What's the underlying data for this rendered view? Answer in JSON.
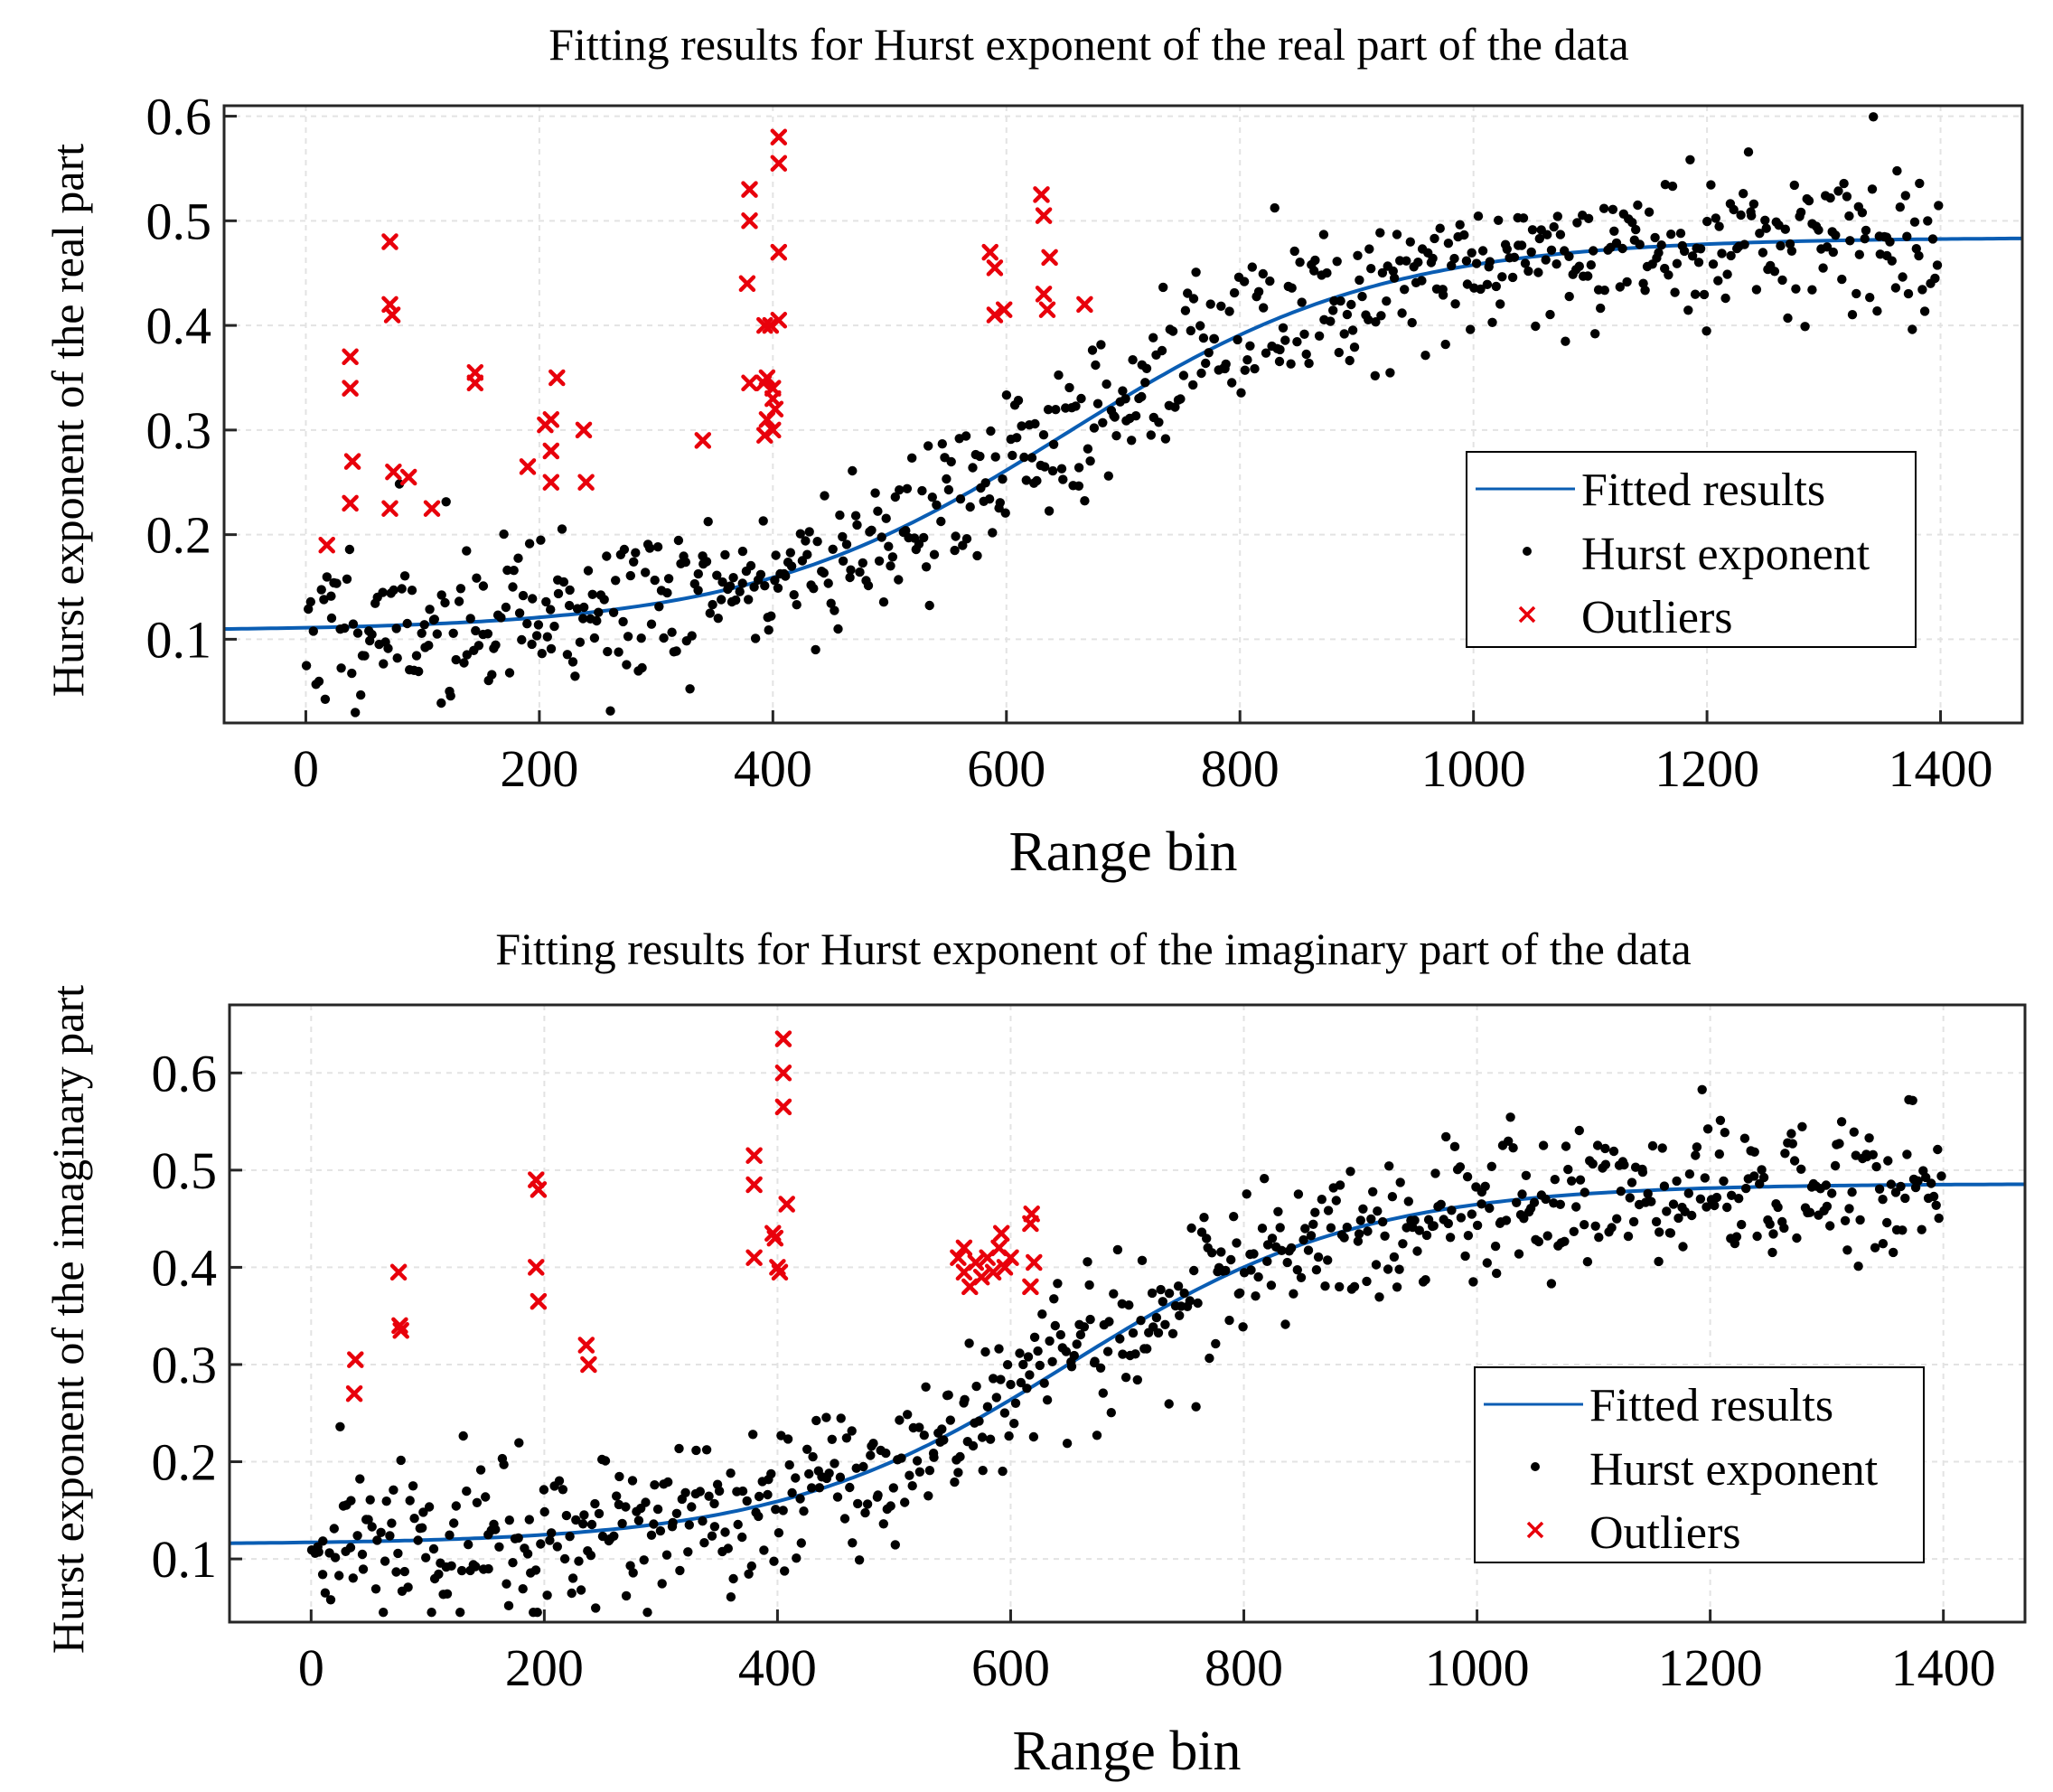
{
  "colors": {
    "fit": "#0a5db3",
    "points": "#000000",
    "outliers": "#e8000b",
    "grid": "#e3e3e3"
  },
  "chart_data": [
    {
      "type": "scatter",
      "title": "Fitting results for Hurst exponent of the real part of the data",
      "xlabel": "Range bin",
      "ylabel": "Hurst exponent of the real part",
      "xlim": [
        -70,
        1470
      ],
      "ylim": [
        0.02,
        0.61
      ],
      "xticks": [
        0,
        200,
        400,
        600,
        800,
        1000,
        1200,
        1400
      ],
      "yticks": [
        0.1,
        0.2,
        0.3,
        0.4,
        0.5,
        0.6
      ],
      "grid": true,
      "legend_position": "lower-right",
      "legend": [
        "Fitted results",
        "Hurst exponent",
        "Outliers"
      ],
      "fit": {
        "name": "Fitted results",
        "model": "logistic",
        "low": 0.108,
        "high": 0.484,
        "center": 650,
        "scale": 135,
        "x_range": [
          -70,
          1470
        ]
      },
      "scatter": {
        "name": "Hurst exponent",
        "x_range": [
          0,
          1400
        ],
        "count": 700,
        "noise_sd": 0.038,
        "seed": 11
      },
      "outliers": {
        "name": "Outliers",
        "points": [
          [
            18,
            0.19
          ],
          [
            38,
            0.37
          ],
          [
            38,
            0.34
          ],
          [
            40,
            0.27
          ],
          [
            38,
            0.23
          ],
          [
            72,
            0.48
          ],
          [
            72,
            0.42
          ],
          [
            74,
            0.41
          ],
          [
            75,
            0.26
          ],
          [
            72,
            0.225
          ],
          [
            88,
            0.255
          ],
          [
            108,
            0.225
          ],
          [
            145,
            0.355
          ],
          [
            145,
            0.345
          ],
          [
            190,
            0.265
          ],
          [
            205,
            0.305
          ],
          [
            210,
            0.31
          ],
          [
            210,
            0.28
          ],
          [
            215,
            0.35
          ],
          [
            210,
            0.25
          ],
          [
            238,
            0.3
          ],
          [
            240,
            0.25
          ],
          [
            340,
            0.29
          ],
          [
            380,
            0.53
          ],
          [
            380,
            0.5
          ],
          [
            378,
            0.44
          ],
          [
            380,
            0.345
          ],
          [
            392,
            0.345
          ],
          [
            395,
            0.35
          ],
          [
            393,
            0.4
          ],
          [
            398,
            0.4
          ],
          [
            400,
            0.34
          ],
          [
            400,
            0.33
          ],
          [
            395,
            0.31
          ],
          [
            393,
            0.295
          ],
          [
            400,
            0.3
          ],
          [
            402,
            0.32
          ],
          [
            405,
            0.58
          ],
          [
            405,
            0.555
          ],
          [
            405,
            0.47
          ],
          [
            405,
            0.405
          ],
          [
            598,
            0.415
          ],
          [
            586,
            0.47
          ],
          [
            590,
            0.455
          ],
          [
            590,
            0.41
          ],
          [
            630,
            0.525
          ],
          [
            632,
            0.505
          ],
          [
            637,
            0.465
          ],
          [
            632,
            0.43
          ],
          [
            635,
            0.415
          ],
          [
            667,
            0.42
          ]
        ]
      }
    },
    {
      "type": "scatter",
      "title": "Fitting results for Hurst exponent of the imaginary part of the data",
      "xlabel": "Range bin",
      "ylabel": "Hurst exponent of the imaginary part",
      "xlim": [
        -70,
        1470
      ],
      "ylim": [
        0.035,
        0.67
      ],
      "xticks": [
        0,
        200,
        400,
        600,
        800,
        1000,
        1200,
        1400
      ],
      "yticks": [
        0.1,
        0.2,
        0.3,
        0.4,
        0.5,
        0.6
      ],
      "grid": true,
      "legend_position": "lower-right",
      "legend": [
        "Fitted results",
        "Hurst exponent",
        "Outliers"
      ],
      "fit": {
        "name": "Fitted results",
        "model": "logistic",
        "low": 0.115,
        "high": 0.486,
        "center": 650,
        "scale": 125,
        "x_range": [
          -70,
          1470
        ]
      },
      "scatter": {
        "name": "Hurst exponent",
        "x_range": [
          0,
          1400
        ],
        "count": 700,
        "noise_sd": 0.04,
        "seed": 29
      },
      "outliers": {
        "name": "Outliers",
        "points": [
          [
            38,
            0.305
          ],
          [
            37,
            0.27
          ],
          [
            75,
            0.395
          ],
          [
            76,
            0.34
          ],
          [
            77,
            0.335
          ],
          [
            193,
            0.49
          ],
          [
            195,
            0.48
          ],
          [
            193,
            0.4
          ],
          [
            195,
            0.365
          ],
          [
            236,
            0.32
          ],
          [
            238,
            0.3
          ],
          [
            380,
            0.515
          ],
          [
            380,
            0.485
          ],
          [
            380,
            0.41
          ],
          [
            396,
            0.435
          ],
          [
            398,
            0.43
          ],
          [
            400,
            0.4
          ],
          [
            402,
            0.395
          ],
          [
            405,
            0.635
          ],
          [
            405,
            0.6
          ],
          [
            405,
            0.565
          ],
          [
            408,
            0.465
          ],
          [
            555,
            0.41
          ],
          [
            560,
            0.395
          ],
          [
            565,
            0.38
          ],
          [
            570,
            0.405
          ],
          [
            575,
            0.39
          ],
          [
            580,
            0.41
          ],
          [
            585,
            0.395
          ],
          [
            590,
            0.42
          ],
          [
            592,
            0.435
          ],
          [
            595,
            0.4
          ],
          [
            600,
            0.41
          ],
          [
            560,
            0.42
          ],
          [
            618,
            0.455
          ],
          [
            617,
            0.445
          ],
          [
            620,
            0.405
          ],
          [
            617,
            0.38
          ]
        ]
      }
    }
  ]
}
